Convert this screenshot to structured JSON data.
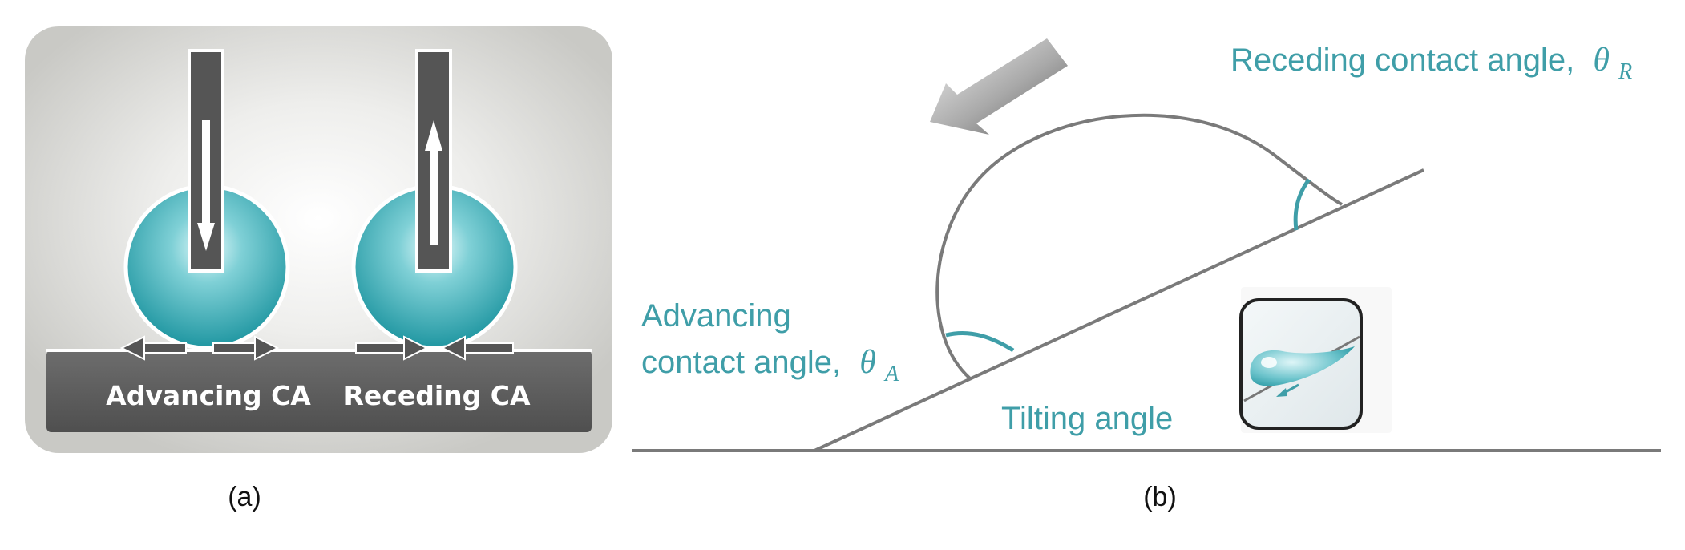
{
  "panel_a": {
    "label_left": "Advancing CA",
    "label_right": "Receding CA",
    "caption": "(a)"
  },
  "panel_b": {
    "receding_text": "Receding contact angle,",
    "receding_symbol": "θ",
    "receding_subscript": "R",
    "advancing_line1": "Advancing",
    "advancing_line2": "contact angle,",
    "advancing_symbol": "θ",
    "advancing_subscript": "A",
    "tilting_text": "Tilting angle",
    "caption": "(b)"
  },
  "colors": {
    "accent_teal": "#3f9ea8",
    "drop_teal": "#2aa3ad",
    "dark_gray": "#5a5a5a",
    "panel_bg": "#cfcfcb",
    "line_gray": "#7a7a7a"
  }
}
